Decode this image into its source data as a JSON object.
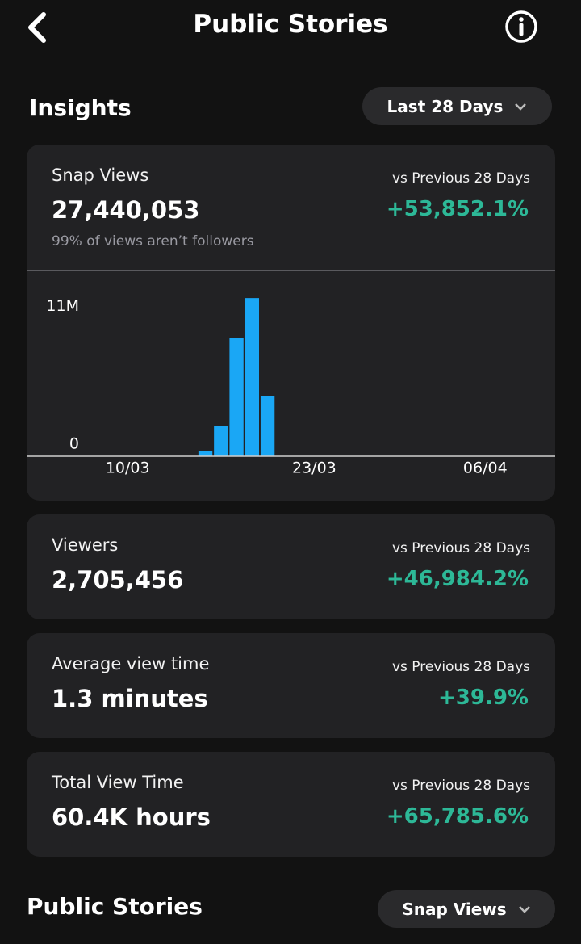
{
  "header": {
    "title": "Public Stories"
  },
  "insights": {
    "title": "Insights",
    "range": "Last 28 Days"
  },
  "cards": [
    {
      "label": "Snap Views",
      "value": "27,440,053",
      "note": "99% of views aren’t followers",
      "comparison": "vs Previous 28 Days",
      "change": "+53,852.1%"
    },
    {
      "label": "Viewers",
      "value": "2,705,456",
      "comparison": "vs Previous 28 Days",
      "change": "+46,984.2%"
    },
    {
      "label": "Average view time",
      "value": "1.3 minutes",
      "comparison": "vs Previous 28 Days",
      "change": "+39.9%"
    },
    {
      "label": "Total View Time",
      "value": "60.4K hours",
      "comparison": "vs Previous 28 Days",
      "change": "+65,785.6%"
    }
  ],
  "chart_data": {
    "type": "bar",
    "color": "#1aa7f5",
    "categories": [
      null,
      null,
      null,
      null,
      null,
      null,
      "10/03",
      null,
      null,
      null,
      null,
      null,
      null,
      null,
      null,
      null,
      null,
      null,
      "23/03",
      null,
      null,
      null,
      null,
      null,
      null,
      null,
      null,
      null,
      null,
      "06/04",
      null,
      null,
      null,
      null
    ],
    "values": [
      0,
      0,
      0,
      0,
      0,
      0,
      0,
      0,
      0,
      0,
      0,
      360000,
      2200000,
      8700000,
      11600000,
      4400000,
      0,
      0,
      0,
      0,
      0,
      0,
      0,
      0,
      0,
      0,
      0,
      0,
      0,
      0,
      0,
      0,
      0,
      0
    ],
    "ylim": [
      0,
      12200000
    ],
    "yticks": [
      0,
      {
        "value": 11000000,
        "label": "11M"
      }
    ]
  },
  "footer": {
    "title": "Public Stories",
    "sort": "Snap Views"
  }
}
